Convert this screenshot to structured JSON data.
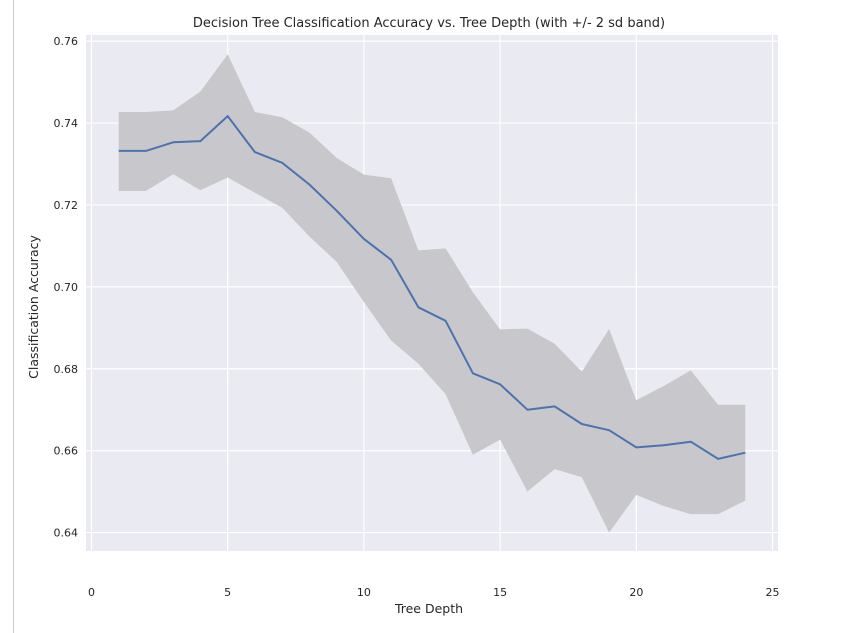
{
  "chart_data": {
    "type": "line",
    "title": "Decision Tree Classification Accuracy vs. Tree Depth (with +/- 2 sd band)",
    "xlabel": "Tree Depth",
    "ylabel": "Classification Accuracy",
    "xlim": [
      -0.2,
      25.2
    ],
    "ylim": [
      0.6355,
      0.7615
    ],
    "x_ticks": [
      0,
      5,
      10,
      15,
      20,
      25
    ],
    "x_tick_labels": [
      "0",
      "5",
      "10",
      "15",
      "20",
      "25"
    ],
    "y_ticks": [
      0.64,
      0.66,
      0.68,
      0.7,
      0.72,
      0.74,
      0.76
    ],
    "y_tick_labels": [
      "0.64",
      "0.66",
      "0.68",
      "0.70",
      "0.72",
      "0.74",
      "0.76"
    ],
    "grid": true,
    "legend": false,
    "x": [
      1,
      2,
      3,
      4,
      5,
      6,
      7,
      8,
      9,
      10,
      11,
      12,
      13,
      14,
      15,
      16,
      17,
      18,
      19,
      20,
      21,
      22,
      23,
      24
    ],
    "series": [
      {
        "values": [
          0.7332,
          0.7332,
          0.7353,
          0.7356,
          0.7417,
          0.7329,
          0.7303,
          0.725,
          0.7186,
          0.7117,
          0.7066,
          0.695,
          0.6917,
          0.6789,
          0.6762,
          0.67,
          0.6708,
          0.6665,
          0.665,
          0.6608,
          0.6613,
          0.6622,
          0.658,
          0.6595
        ],
        "color": "#4c72b0"
      }
    ],
    "band": {
      "upper": [
        0.7427,
        0.7427,
        0.7431,
        0.7477,
        0.7568,
        0.7427,
        0.7414,
        0.7377,
        0.7315,
        0.7274,
        0.7265,
        0.7089,
        0.7094,
        0.6987,
        0.6896,
        0.6898,
        0.6861,
        0.6793,
        0.6897,
        0.6723,
        0.6758,
        0.6796,
        0.6712,
        0.6712
      ],
      "lower": [
        0.7234,
        0.7234,
        0.7275,
        0.7236,
        0.7267,
        0.723,
        0.7193,
        0.7123,
        0.7061,
        0.6963,
        0.6869,
        0.6812,
        0.6738,
        0.659,
        0.6627,
        0.65,
        0.6555,
        0.6535,
        0.64,
        0.6492,
        0.6465,
        0.6445,
        0.6445,
        0.6478
      ],
      "color": "#c8c8cc"
    },
    "colors": {
      "plot_background": "#eaeaf2",
      "grid": "#ffffff",
      "text": "#262626"
    }
  }
}
